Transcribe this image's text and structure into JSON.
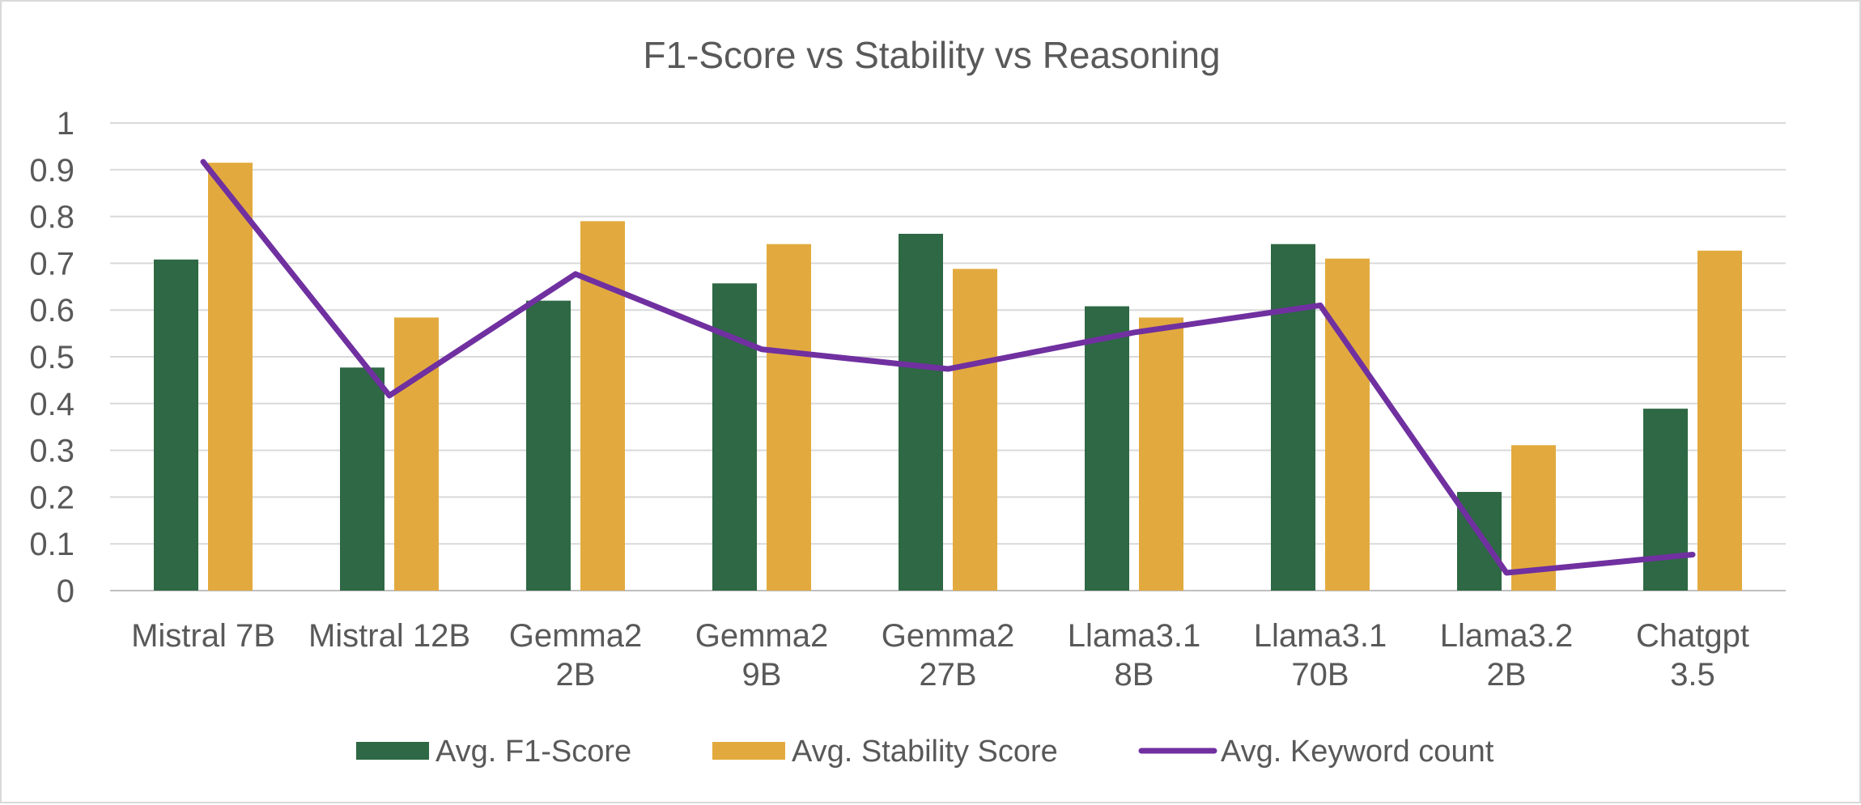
{
  "chart_data": {
    "type": "bar",
    "title": "F1-Score vs Stability vs Reasoning",
    "categories": [
      [
        "Mistral 7B"
      ],
      [
        "Mistral 12B"
      ],
      [
        "Gemma2",
        "2B"
      ],
      [
        "Gemma2",
        "9B"
      ],
      [
        "Gemma2",
        "27B"
      ],
      [
        "Llama3.1",
        "8B"
      ],
      [
        "Llama3.1",
        "70B"
      ],
      [
        "Llama3.2",
        "2B"
      ],
      [
        "Chatgpt",
        "3.5"
      ]
    ],
    "ylim": [
      0,
      1
    ],
    "yticks": [
      "0",
      "0.1",
      "0.2",
      "0.3",
      "0.4",
      "0.5",
      "0.6",
      "0.7",
      "0.8",
      "0.9",
      "1"
    ],
    "grid": true,
    "legend_position": "bottom",
    "series": [
      {
        "name": "Avg. F1-Score",
        "kind": "bar",
        "color": "#2e6844",
        "values": [
          0.708,
          0.477,
          0.62,
          0.657,
          0.763,
          0.608,
          0.741,
          0.211,
          0.389
        ]
      },
      {
        "name": "Avg. Stability Score",
        "kind": "bar",
        "color": "#e2aa3e",
        "values": [
          0.915,
          0.584,
          0.79,
          0.741,
          0.688,
          0.584,
          0.71,
          0.311,
          0.727
        ]
      },
      {
        "name": "Avg. Keyword count",
        "kind": "line",
        "color": "#7030a0",
        "values": [
          0.917,
          0.417,
          0.677,
          0.516,
          0.474,
          0.552,
          0.61,
          0.038,
          0.077
        ]
      }
    ]
  }
}
